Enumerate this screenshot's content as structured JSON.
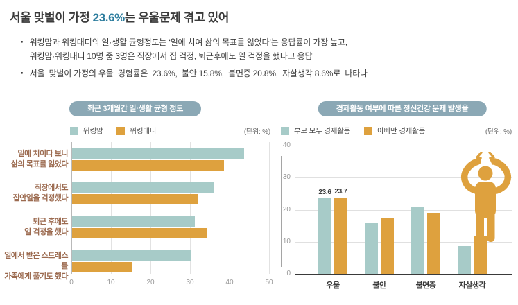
{
  "header": {
    "title": {
      "prefix": "서울 맞벌이 가정 ",
      "highlight": "23.6%",
      "suffix": "는 우울문제 겪고 있어"
    },
    "bullets": [
      {
        "lines": [
          "워킹맘과 워킹대디의 일·생활 균형정도는 ‘일에 치여 삶의 목표를 잃었다’는 응답률이 가장 높고,",
          "워킹맘·워킹대디 10명 중 3명은 직장에서 집 걱정, 퇴근후에도 일 걱정을 했다고 응답"
        ]
      },
      {
        "lines": [
          "서울  맞벌이 가정의 우울  경험률은  23.6%,  불안 15.8%,  불면증 20.8%,  자살생각 8.6%로  나타나"
        ]
      }
    ]
  },
  "colors": {
    "title_highlight": "#2D7D9E",
    "pill_bg": "#8BA8B5",
    "series_teal": "#A7CBC8",
    "series_orange": "#DEA13E",
    "category_label_brown": "#9C6B50",
    "person_orange": "#DEA13E"
  },
  "chart_data": [
    {
      "id": "work-life-balance",
      "type": "bar",
      "orientation": "horizontal",
      "title": "최근 3개월간 일·생활 균형 정도",
      "unit_label": "(단위: %)",
      "categories": [
        [
          "일에 치이다 보니",
          "삶의 목표를 잃었다"
        ],
        [
          "직장에서도",
          "집안일을 걱정했다"
        ],
        [
          "퇴근 후에도",
          "일 걱정을 했다"
        ],
        [
          "일에서 받은 스트레스를",
          "가족에게 풀기도 했다"
        ]
      ],
      "series": [
        {
          "name": "워킹맘",
          "color": "#A7CBC8",
          "values": [
            43.5,
            36,
            31,
            30
          ]
        },
        {
          "name": "워킹대디",
          "color": "#DEA13E",
          "values": [
            38.5,
            32,
            34,
            15
          ]
        }
      ],
      "xlim": [
        0,
        50
      ],
      "xticks": [
        0,
        10,
        20,
        30,
        40,
        50
      ],
      "grid": "vertical"
    },
    {
      "id": "mental-health-by-activity",
      "type": "bar",
      "orientation": "vertical",
      "title": "경제활동 여부에 따른 정신건강 문제 발생율",
      "unit_label": "(단위: %)",
      "categories": [
        "우울",
        "불안",
        "불면증",
        "자살생각"
      ],
      "series": [
        {
          "name": "부모 모두 경제활동",
          "color": "#A7CBC8",
          "values": [
            23.6,
            15.8,
            20.8,
            8.6
          ]
        },
        {
          "name": "아빠만 경제활동",
          "color": "#DEA13E",
          "values": [
            23.7,
            17.2,
            19.0,
            11.8
          ]
        }
      ],
      "ylim": [
        0,
        40
      ],
      "yticks": [
        0,
        10,
        20,
        30,
        40
      ],
      "bar_labels": [
        [
          "23.6",
          "23.7"
        ],
        null,
        null,
        null
      ],
      "grid": "horizontal"
    }
  ]
}
